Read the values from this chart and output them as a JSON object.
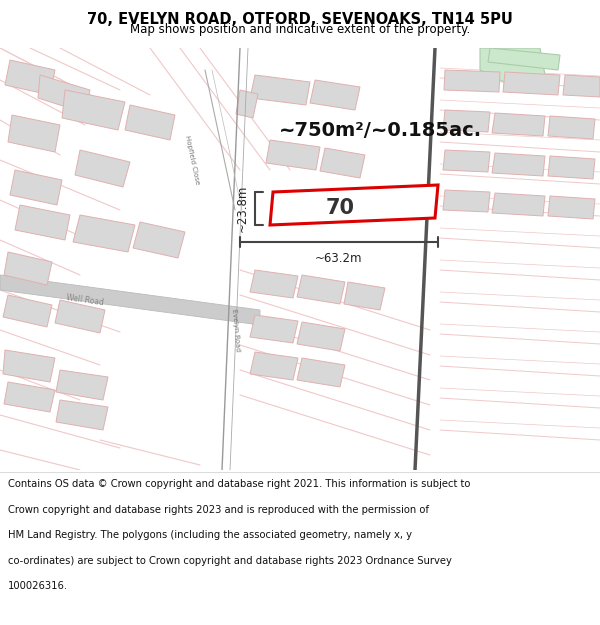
{
  "title": "70, EVELYN ROAD, OTFORD, SEVENOAKS, TN14 5PU",
  "subtitle": "Map shows position and indicative extent of the property.",
  "footer_lines": [
    "Contains OS data © Crown copyright and database right 2021. This information is subject to",
    "Crown copyright and database rights 2023 and is reproduced with the permission of",
    "HM Land Registry. The polygons (including the associated geometry, namely x, y",
    "co-ordinates) are subject to Crown copyright and database rights 2023 Ordnance Survey",
    "100026316."
  ],
  "area_text": "~750m²/~0.185ac.",
  "width_text": "~63.2m",
  "height_text": "~23.8m",
  "property_label": "70",
  "map_bg": "#faf7f7",
  "property_outline_color": "#dd0000",
  "road_color": "#f0c8c8",
  "road_edge_color": "#e0a8a8",
  "building_fill": "#d8d8d8",
  "building_edge": "#e0b0b0",
  "green_fill": "#cce8cc",
  "green_edge": "#aaccaa",
  "dark_road_color": "#888888",
  "well_road_color": "#cccccc",
  "title_fontsize": 10.5,
  "subtitle_fontsize": 8.5,
  "footer_fontsize": 7.2,
  "label_fontsize": 5.0,
  "dim_arrow_color": "#444444",
  "dim_text_color": "#222222"
}
